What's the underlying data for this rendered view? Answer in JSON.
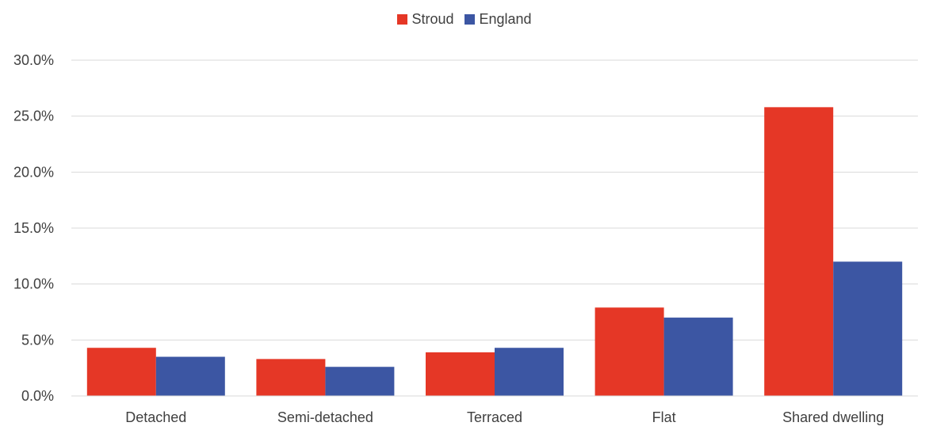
{
  "chart_data": {
    "type": "bar",
    "categories": [
      "Detached",
      "Semi-detached",
      "Terraced",
      "Flat",
      "Shared dwelling"
    ],
    "series": [
      {
        "name": "Stroud",
        "color": "#E53726",
        "values": [
          4.3,
          3.3,
          3.9,
          7.9,
          25.8
        ]
      },
      {
        "name": "England",
        "color": "#3C56A3",
        "values": [
          3.5,
          2.6,
          4.3,
          7.0,
          12.0
        ]
      }
    ],
    "y_ticks": [
      "0.0%",
      "5.0%",
      "10.0%",
      "15.0%",
      "20.0%",
      "25.0%",
      "30.0%"
    ],
    "ylim": [
      0,
      30
    ],
    "grid": true,
    "legend_position": "top-center",
    "title": "",
    "xlabel": "",
    "ylabel": ""
  }
}
